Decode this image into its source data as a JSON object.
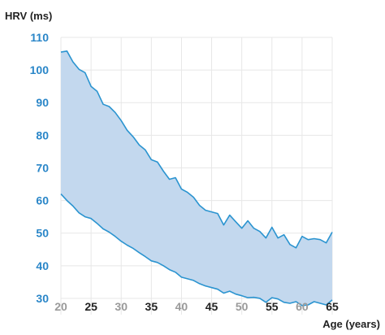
{
  "chart_data": {
    "type": "area",
    "ylabel": "HRV (ms)",
    "xlabel": "Age (years)",
    "xlim": [
      20,
      65
    ],
    "ylim": [
      25,
      110
    ],
    "xticks": [
      {
        "value": 20,
        "label": "20",
        "emphasis": false
      },
      {
        "value": 25,
        "label": "25",
        "emphasis": true
      },
      {
        "value": 30,
        "label": "30",
        "emphasis": false
      },
      {
        "value": 35,
        "label": "35",
        "emphasis": true
      },
      {
        "value": 40,
        "label": "40",
        "emphasis": false
      },
      {
        "value": 45,
        "label": "45",
        "emphasis": true
      },
      {
        "value": 50,
        "label": "50",
        "emphasis": false
      },
      {
        "value": 55,
        "label": "55",
        "emphasis": true
      },
      {
        "value": 60,
        "label": "60",
        "emphasis": false
      },
      {
        "value": 65,
        "label": "65",
        "emphasis": true
      }
    ],
    "yticks": [
      {
        "value": 110,
        "label": "110"
      },
      {
        "value": 100,
        "label": "100"
      },
      {
        "value": 90,
        "label": "90"
      },
      {
        "value": 80,
        "label": "80"
      },
      {
        "value": 70,
        "label": "70"
      },
      {
        "value": 60,
        "label": "60"
      },
      {
        "value": 50,
        "label": "50"
      },
      {
        "value": 40,
        "label": "40"
      },
      {
        "value": 30,
        "label": "30"
      }
    ],
    "grid": true,
    "colors": {
      "line": "#2b94d0",
      "fill": "#c3d8ee",
      "grid": "#e7e7e7",
      "ytick": "#2a86c8"
    },
    "x": [
      20,
      21,
      22,
      23,
      24,
      25,
      26,
      27,
      28,
      29,
      30,
      31,
      32,
      33,
      34,
      35,
      36,
      37,
      38,
      39,
      40,
      41,
      42,
      43,
      44,
      45,
      46,
      47,
      48,
      49,
      50,
      51,
      52,
      53,
      54,
      55,
      56,
      57,
      58,
      59,
      60,
      61,
      62,
      63,
      64,
      65
    ],
    "series": [
      {
        "values": [
          105.5,
          105.8,
          102.5,
          100.2,
          99.2,
          95.0,
          93.5,
          89.5,
          88.8,
          87.0,
          84.5,
          81.5,
          79.5,
          77.0,
          75.5,
          72.5,
          71.8,
          69.0,
          66.5,
          67.0,
          63.5,
          62.5,
          61.0,
          58.5,
          57.0,
          56.5,
          56.0,
          52.5,
          55.5,
          53.5,
          51.5,
          53.8,
          51.5,
          50.5,
          48.5,
          51.8,
          48.5,
          49.5,
          46.5,
          45.5,
          49.0,
          48.0,
          48.3,
          48.0,
          47.0,
          50.3
        ]
      },
      {
        "values": [
          62.0,
          60.0,
          58.3,
          56.2,
          55.0,
          54.5,
          53.0,
          51.3,
          50.3,
          49.0,
          47.5,
          46.3,
          45.3,
          44.0,
          42.8,
          41.5,
          41.0,
          40.0,
          38.8,
          38.0,
          36.5,
          36.0,
          35.5,
          34.5,
          33.8,
          33.3,
          32.8,
          31.6,
          32.2,
          31.3,
          30.8,
          30.2,
          30.3,
          30.0,
          28.8,
          30.2,
          29.8,
          28.8,
          28.5,
          29.0,
          27.8,
          28.0,
          29.0,
          28.5,
          28.0,
          29.5
        ]
      }
    ]
  }
}
